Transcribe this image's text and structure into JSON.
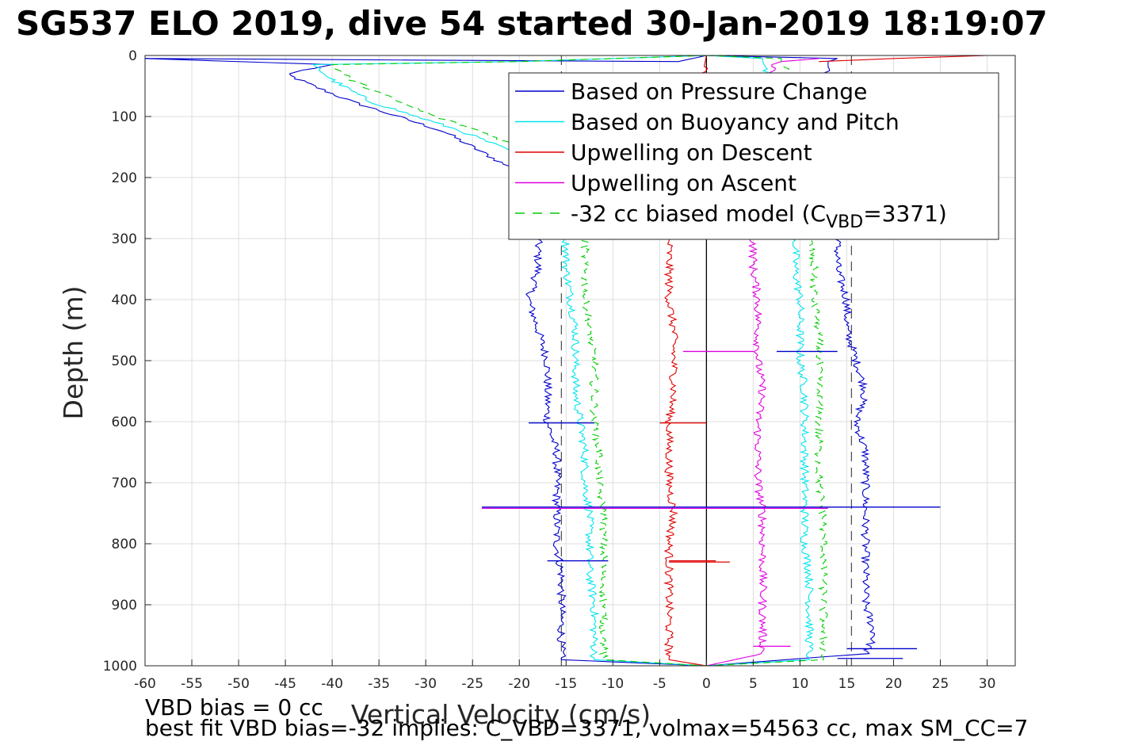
{
  "chart_data": {
    "type": "line",
    "title": "SG537 ELO 2019, dive 54 started 30-Jan-2019 18:19:07",
    "xlabel": "Vertical Velocity (cm/s)",
    "ylabel": "Depth (m)",
    "xlim": [
      -60,
      33
    ],
    "ylim": [
      0,
      1000
    ],
    "y_reversed": true,
    "grid": true,
    "xticks": [
      "-60",
      "-55",
      "-50",
      "-45",
      "-40",
      "-35",
      "-30",
      "-25",
      "-20",
      "-15",
      "-10",
      "-5",
      "0",
      "5",
      "10",
      "15",
      "20",
      "25",
      "30"
    ],
    "yticks": [
      "0",
      "100",
      "200",
      "300",
      "400",
      "500",
      "600",
      "700",
      "800",
      "900",
      "1000"
    ],
    "legend_position": "top-right",
    "legend": [
      {
        "label": "Based on Pressure Change",
        "color": "#0000cc",
        "style": "solid"
      },
      {
        "label": "Based on Buoyancy and Pitch",
        "color": "#00e5ee",
        "style": "solid"
      },
      {
        "label": "Upwelling on Descent",
        "color": "#e00000",
        "style": "solid"
      },
      {
        "label": "Upwelling on Ascent",
        "color": "#e000e0",
        "style": "solid"
      },
      {
        "label": "-32 cc biased model (C",
        "sub": "VBD",
        "tail": "=3371)",
        "color": "#00cc00",
        "style": "dashed"
      }
    ],
    "reference_lines": [
      {
        "x": -15.5,
        "style": "dashed",
        "color": "#555555"
      },
      {
        "x": 15.5,
        "style": "dashed",
        "color": "#555555"
      },
      {
        "x": 0,
        "style": "solid",
        "color": "#000000"
      }
    ],
    "series": [
      {
        "color": "#0000cc",
        "points": [
          [
            0,
            0
          ],
          [
            -3,
            10
          ],
          [
            -60,
            5
          ],
          [
            -40,
            15
          ],
          [
            -45,
            30
          ],
          [
            -42,
            50
          ],
          [
            -38,
            75
          ],
          [
            -33,
            100
          ],
          [
            -28,
            125
          ],
          [
            -25,
            150
          ],
          [
            -22,
            175
          ],
          [
            -19,
            200
          ],
          [
            -18,
            250
          ],
          [
            -18,
            300
          ],
          [
            -18,
            350
          ],
          [
            -19,
            400
          ],
          [
            -18,
            450
          ],
          [
            -17,
            500
          ],
          [
            -17,
            550
          ],
          [
            -17,
            600
          ],
          [
            -16,
            650
          ],
          [
            -16,
            700
          ],
          [
            -16,
            750
          ],
          [
            -16,
            800
          ],
          [
            -15.5,
            850
          ],
          [
            -15.5,
            900
          ],
          [
            -15.5,
            950
          ],
          [
            -15.5,
            990
          ],
          [
            0,
            1000
          ]
        ]
      },
      {
        "color": "#0000cc",
        "points": [
          [
            0,
            0
          ],
          [
            14,
            5
          ],
          [
            13,
            10
          ],
          [
            13,
            100
          ],
          [
            14,
            200
          ],
          [
            14,
            300
          ],
          [
            14,
            350
          ],
          [
            15,
            400
          ],
          [
            15,
            450
          ],
          [
            16,
            500
          ],
          [
            17,
            550
          ],
          [
            16,
            600
          ],
          [
            17,
            650
          ],
          [
            17,
            700
          ],
          [
            17,
            750
          ],
          [
            17,
            800
          ],
          [
            17,
            850
          ],
          [
            17,
            900
          ],
          [
            18,
            950
          ],
          [
            17,
            980
          ],
          [
            0,
            1000
          ]
        ]
      },
      {
        "color": "#00e5ee",
        "points": [
          [
            0,
            0
          ],
          [
            -20,
            10
          ],
          [
            -42,
            15
          ],
          [
            -40,
            40
          ],
          [
            -36,
            75
          ],
          [
            -31,
            100
          ],
          [
            -26,
            125
          ],
          [
            -22,
            150
          ],
          [
            -18,
            175
          ],
          [
            -16,
            200
          ],
          [
            -15,
            250
          ],
          [
            -15,
            300
          ],
          [
            -15,
            350
          ],
          [
            -14.5,
            400
          ],
          [
            -14,
            450
          ],
          [
            -14,
            500
          ],
          [
            -14,
            550
          ],
          [
            -13.5,
            600
          ],
          [
            -13,
            650
          ],
          [
            -13,
            700
          ],
          [
            -12.5,
            750
          ],
          [
            -12.5,
            800
          ],
          [
            -12.5,
            850
          ],
          [
            -12,
            900
          ],
          [
            -12,
            950
          ],
          [
            -12,
            990
          ],
          [
            0,
            1000
          ]
        ]
      },
      {
        "color": "#00e5ee",
        "points": [
          [
            0,
            0
          ],
          [
            6,
            5
          ],
          [
            6,
            10
          ],
          [
            9,
            100
          ],
          [
            9,
            200
          ],
          [
            9.5,
            300
          ],
          [
            9.5,
            350
          ],
          [
            10,
            400
          ],
          [
            10,
            450
          ],
          [
            10,
            500
          ],
          [
            10.5,
            550
          ],
          [
            10.5,
            600
          ],
          [
            10.5,
            650
          ],
          [
            10.5,
            700
          ],
          [
            10.5,
            750
          ],
          [
            10.5,
            800
          ],
          [
            11,
            850
          ],
          [
            11,
            900
          ],
          [
            11,
            950
          ],
          [
            11,
            990
          ],
          [
            0,
            1000
          ]
        ]
      },
      {
        "color": "#e00000",
        "points": [
          [
            0,
            0
          ],
          [
            -4,
            300
          ],
          [
            -4,
            350
          ],
          [
            -4,
            400
          ],
          [
            -3.5,
            450
          ],
          [
            -3.5,
            500
          ],
          [
            -3.5,
            550
          ],
          [
            -4,
            600
          ],
          [
            -4,
            650
          ],
          [
            -4,
            700
          ],
          [
            -3.5,
            750
          ],
          [
            -4,
            800
          ],
          [
            -4,
            850
          ],
          [
            -4,
            900
          ],
          [
            -4,
            950
          ],
          [
            -4,
            990
          ],
          [
            0,
            1000
          ]
        ]
      },
      {
        "color": "#e00000",
        "points": [
          [
            30,
            0
          ],
          [
            20,
            5
          ],
          [
            12,
            10
          ]
        ]
      },
      {
        "color": "#e000e0",
        "points": [
          [
            12,
            5
          ],
          [
            8,
            10
          ],
          [
            7,
            15
          ],
          [
            5,
            300
          ],
          [
            5,
            350
          ],
          [
            5.5,
            400
          ],
          [
            5.5,
            450
          ],
          [
            5.5,
            500
          ],
          [
            6,
            550
          ],
          [
            5.5,
            600
          ],
          [
            5.5,
            650
          ],
          [
            5.5,
            700
          ],
          [
            6,
            750
          ],
          [
            6,
            800
          ],
          [
            6,
            850
          ],
          [
            6,
            900
          ],
          [
            6,
            950
          ],
          [
            6,
            980
          ],
          [
            0,
            1000
          ]
        ]
      },
      {
        "color": "#00cc00",
        "style": "dashed",
        "points": [
          [
            0,
            0
          ],
          [
            -20,
            10
          ],
          [
            -40,
            15
          ],
          [
            -38,
            40
          ],
          [
            -33,
            75
          ],
          [
            -29,
            100
          ],
          [
            -24,
            125
          ],
          [
            -20,
            150
          ],
          [
            -17,
            175
          ],
          [
            -15,
            200
          ],
          [
            -13,
            250
          ],
          [
            -13,
            300
          ],
          [
            -13,
            350
          ],
          [
            -13,
            400
          ],
          [
            -12.5,
            450
          ],
          [
            -12,
            500
          ],
          [
            -12,
            550
          ],
          [
            -12,
            600
          ],
          [
            -11.5,
            650
          ],
          [
            -11.5,
            700
          ],
          [
            -11,
            750
          ],
          [
            -11,
            800
          ],
          [
            -11,
            850
          ],
          [
            -11,
            900
          ],
          [
            -11,
            950
          ],
          [
            -11,
            990
          ],
          [
            0,
            1000
          ]
        ]
      },
      {
        "color": "#00cc00",
        "style": "dashed",
        "points": [
          [
            0,
            0
          ],
          [
            8,
            5
          ],
          [
            8,
            10
          ],
          [
            11,
            100
          ],
          [
            11,
            200
          ],
          [
            11,
            300
          ],
          [
            11.5,
            350
          ],
          [
            11.5,
            400
          ],
          [
            12,
            450
          ],
          [
            12,
            500
          ],
          [
            12,
            550
          ],
          [
            12,
            600
          ],
          [
            12,
            650
          ],
          [
            12,
            700
          ],
          [
            12.5,
            750
          ],
          [
            12.5,
            800
          ],
          [
            12.5,
            850
          ],
          [
            12.5,
            900
          ],
          [
            12.5,
            950
          ],
          [
            12.5,
            990
          ],
          [
            0,
            1000
          ]
        ]
      }
    ],
    "spikes": [
      {
        "y": 740,
        "x1": -24,
        "x2": 25,
        "color": "#0000cc"
      },
      {
        "y": 742,
        "x1": -24,
        "x2": 13,
        "color": "#e000e0"
      },
      {
        "y": 485,
        "x1": -2.5,
        "x2": 5,
        "color": "#e000e0"
      },
      {
        "y": 485,
        "x1": 7.5,
        "x2": 14,
        "color": "#0000cc"
      },
      {
        "y": 602,
        "x1": -5,
        "x2": 0,
        "color": "#e00000"
      },
      {
        "y": 602,
        "x1": -19,
        "x2": -12,
        "color": "#0000cc"
      },
      {
        "y": 828,
        "x1": -17,
        "x2": -10.5,
        "color": "#0000cc"
      },
      {
        "y": 828,
        "x1": -4,
        "x2": 1,
        "color": "#e00000"
      },
      {
        "y": 830,
        "x1": -4,
        "x2": 2.5,
        "color": "#e00000"
      },
      {
        "y": 972,
        "x1": 15,
        "x2": 22.5,
        "color": "#0000cc"
      },
      {
        "y": 968,
        "x1": 5,
        "x2": 9,
        "color": "#e000e0"
      },
      {
        "y": 988,
        "x1": 14,
        "x2": 21,
        "color": "#0000cc"
      }
    ]
  },
  "footer": {
    "line1": "VBD bias = 0 cc",
    "line2": "best fit VBD bias=-32 implies: C_VBD=3371, volmax=54563 cc, max SM_CC=7"
  }
}
